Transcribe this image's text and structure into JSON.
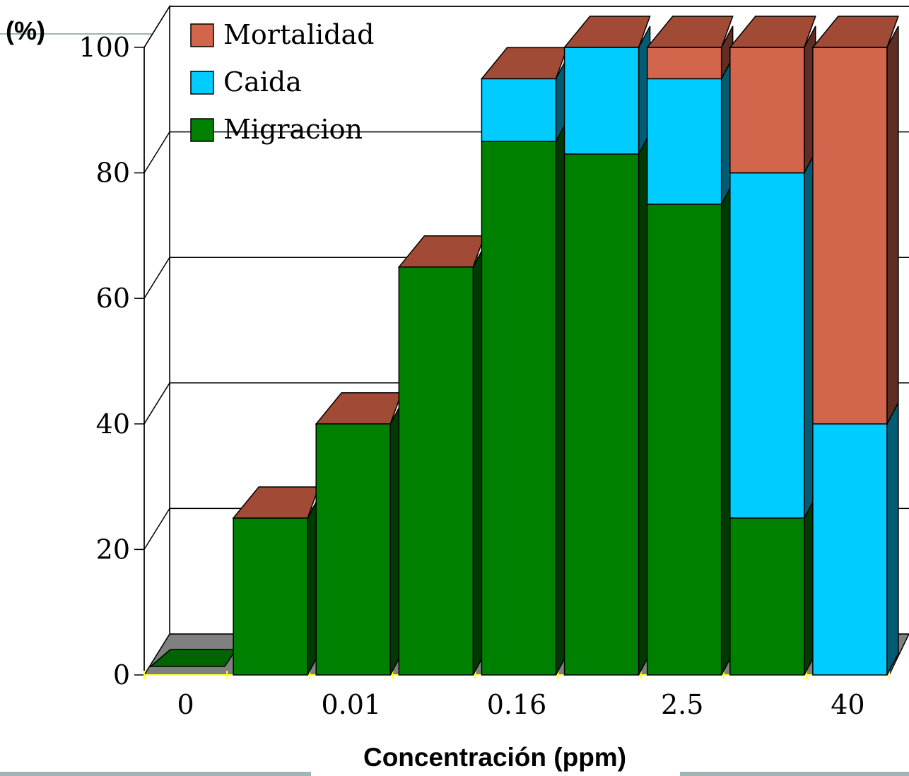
{
  "chart_data": {
    "type": "bar",
    "stacked": true,
    "three_d": true,
    "title": "",
    "ylabel": "(%)",
    "xlabel": "Concentración (ppm)",
    "ylim": [
      0,
      100
    ],
    "yticks": [
      0,
      20,
      40,
      60,
      80,
      100
    ],
    "xtick_labels": [
      "0",
      "0.01",
      "0.16",
      "2.5",
      "40"
    ],
    "categories": [
      "0",
      "",
      "0.01",
      "",
      "0.16",
      "",
      "2.5",
      "",
      "40"
    ],
    "series": [
      {
        "name": "Migracion",
        "color": "#008000",
        "values": [
          0,
          25,
          40,
          65,
          85,
          83,
          75,
          25,
          0
        ]
      },
      {
        "name": "Caida",
        "color": "#00CCFF",
        "values": [
          0,
          0,
          0,
          0,
          10,
          17,
          20,
          55,
          40
        ]
      },
      {
        "name": "Mortalidad",
        "color": "#D2654B",
        "values": [
          0,
          0,
          0,
          0,
          0,
          0,
          5,
          20,
          60
        ]
      }
    ],
    "legend_order": [
      "Mortalidad",
      "Caida",
      "Migracion"
    ],
    "legend_position": "top-left",
    "grid": true
  }
}
